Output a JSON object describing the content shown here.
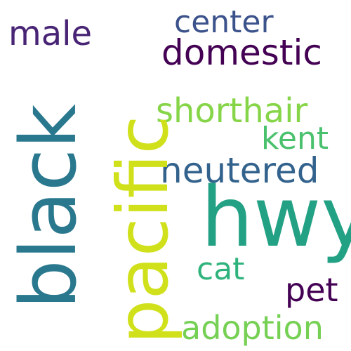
{
  "words": {
    "hwy": {
      "text": "hwy",
      "color": "#23a184"
    },
    "black": {
      "text": "black",
      "color": "#2a788e"
    },
    "pacific": {
      "text": "pacific",
      "color": "#d0e11c"
    },
    "domestic": {
      "text": "domestic",
      "color": "#440154"
    },
    "neutered": {
      "text": "neutered",
      "color": "#33638d"
    },
    "shorthair": {
      "text": "shorthair",
      "color": "#86d549"
    },
    "male": {
      "text": "male",
      "color": "#482475"
    },
    "center": {
      "text": "center",
      "color": "#3b528b"
    },
    "kent": {
      "text": "kent",
      "color": "#4ac16d"
    },
    "adoption": {
      "text": "adoption",
      "color": "#75d054"
    },
    "pet": {
      "text": "pet",
      "color": "#440154"
    },
    "cat": {
      "text": "cat",
      "color": "#2eb37c"
    }
  }
}
